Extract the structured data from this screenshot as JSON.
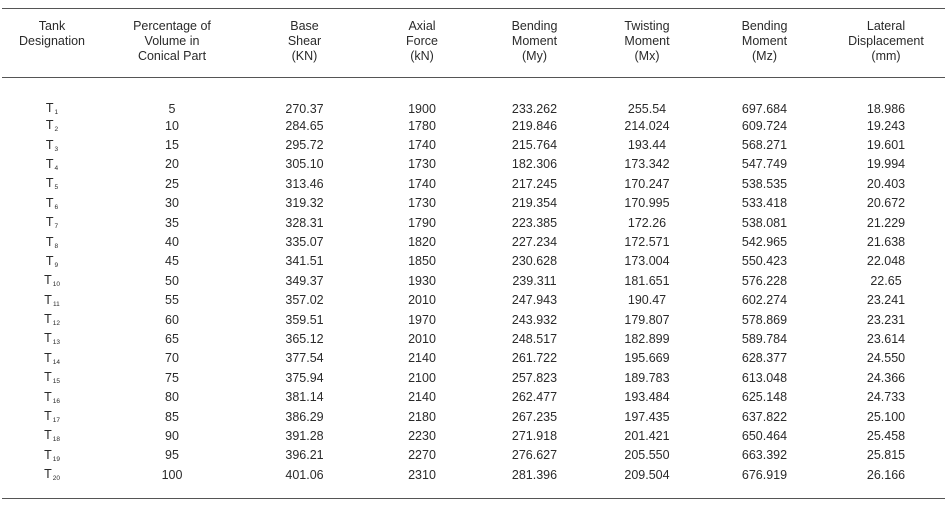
{
  "table": {
    "headers": [
      [
        "Tank",
        "Designation"
      ],
      [
        "Percentage of",
        "Volume in",
        "Conical Part"
      ],
      [
        "Base",
        "Shear",
        "(KN)"
      ],
      [
        "Axial",
        "Force",
        "(kN)"
      ],
      [
        "Bending",
        "Moment",
        "(My)"
      ],
      [
        "Twisting",
        "Moment",
        "(Mx)"
      ],
      [
        "Bending",
        "Moment",
        "(Mz)"
      ],
      [
        "Lateral",
        "Displacement",
        "(mm)"
      ]
    ],
    "rows": [
      {
        "tank": "T",
        "sub": "1",
        "cells": [
          "5",
          "270.37",
          "1900",
          "233.262",
          "255.54",
          "697.684",
          "18.986"
        ]
      },
      {
        "tank": "T",
        "sub": "2",
        "cells": [
          "10",
          "284.65",
          "1780",
          "219.846",
          "214.024",
          "609.724",
          "19.243"
        ]
      },
      {
        "tank": "T",
        "sub": "3",
        "cells": [
          "15",
          "295.72",
          "1740",
          "215.764",
          "193.44",
          "568.271",
          "19.601"
        ]
      },
      {
        "tank": "T",
        "sub": "4",
        "cells": [
          "20",
          "305.10",
          "1730",
          "182.306",
          "173.342",
          "547.749",
          "19.994"
        ]
      },
      {
        "tank": "T",
        "sub": "5",
        "cells": [
          "25",
          "313.46",
          "1740",
          "217.245",
          "170.247",
          "538.535",
          "20.403"
        ]
      },
      {
        "tank": "T",
        "sub": "6",
        "cells": [
          "30",
          "319.32",
          "1730",
          "219.354",
          "170.995",
          "533.418",
          "20.672"
        ]
      },
      {
        "tank": "T",
        "sub": "7",
        "cells": [
          "35",
          "328.31",
          "1790",
          "223.385",
          "172.26",
          "538.081",
          "21.229"
        ]
      },
      {
        "tank": "T",
        "sub": "8",
        "cells": [
          "40",
          "335.07",
          "1820",
          "227.234",
          "172.571",
          "542.965",
          "21.638"
        ]
      },
      {
        "tank": "T",
        "sub": "9",
        "cells": [
          "45",
          "341.51",
          "1850",
          "230.628",
          "173.004",
          "550.423",
          "22.048"
        ]
      },
      {
        "tank": "T",
        "sub": "10",
        "cells": [
          "50",
          "349.37",
          "1930",
          "239.311",
          "181.651",
          "576.228",
          "22.65"
        ]
      },
      {
        "tank": "T",
        "sub": "11",
        "cells": [
          "55",
          "357.02",
          "2010",
          "247.943",
          "190.47",
          "602.274",
          "23.241"
        ]
      },
      {
        "tank": "T",
        "sub": "12",
        "cells": [
          "60",
          "359.51",
          "1970",
          "243.932",
          "179.807",
          "578.869",
          "23.231"
        ]
      },
      {
        "tank": "T",
        "sub": "13",
        "cells": [
          "65",
          "365.12",
          "2010",
          "248.517",
          "182.899",
          "589.784",
          "23.614"
        ]
      },
      {
        "tank": "T",
        "sub": "14",
        "cells": [
          "70",
          "377.54",
          "2140",
          "261.722",
          "195.669",
          "628.377",
          "24.550"
        ]
      },
      {
        "tank": "T",
        "sub": "15",
        "cells": [
          "75",
          "375.94",
          "2100",
          "257.823",
          "189.783",
          "613.048",
          "24.366"
        ]
      },
      {
        "tank": "T",
        "sub": "16",
        "cells": [
          "80",
          "381.14",
          "2140",
          "262.477",
          "193.484",
          "625.148",
          "24.733"
        ]
      },
      {
        "tank": "T",
        "sub": "17",
        "cells": [
          "85",
          "386.29",
          "2180",
          "267.235",
          "197.435",
          "637.822",
          "25.100"
        ]
      },
      {
        "tank": "T",
        "sub": "18",
        "cells": [
          "90",
          "391.28",
          "2230",
          "271.918",
          "201.421",
          "650.464",
          "25.458"
        ]
      },
      {
        "tank": "T",
        "sub": "19",
        "cells": [
          "95",
          "396.21",
          "2270",
          "276.627",
          "205.550",
          "663.392",
          "25.815"
        ]
      },
      {
        "tank": "T",
        "sub": "20",
        "cells": [
          "100",
          "401.06",
          "2310",
          "281.396",
          "209.504",
          "676.919",
          "26.166"
        ]
      }
    ]
  }
}
